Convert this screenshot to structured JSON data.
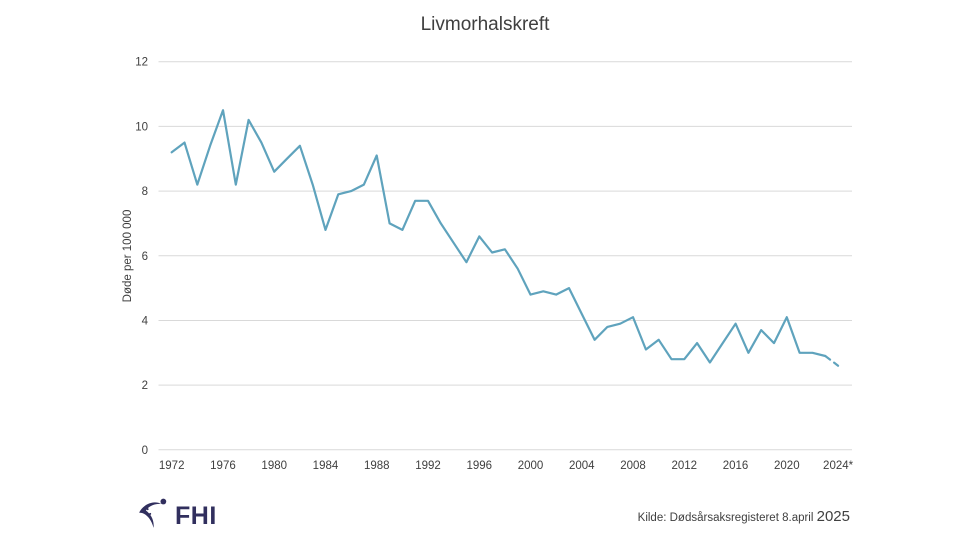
{
  "title": "Livmorhalskreft",
  "y_axis_title": "Døde per 100 000",
  "footer": {
    "logo_text": "FHI",
    "source_prefix": "Kilde: Dødsårsaksregisteret 8.april ",
    "source_year": "2025"
  },
  "colors": {
    "line": "#5fa3bd",
    "gridline": "#d9d9d9",
    "text": "#404040",
    "logo_navy": "#312f5e"
  },
  "chart_data": {
    "type": "line",
    "title": "Livmorhalskreft",
    "xlabel": "",
    "ylabel": "Døde per 100 000",
    "ylim": [
      0,
      12
    ],
    "yticks": [
      0,
      2,
      4,
      6,
      8,
      10,
      12
    ],
    "xtick_labels": [
      "1972",
      "1976",
      "1980",
      "1984",
      "1988",
      "1992",
      "1996",
      "2000",
      "2004",
      "2008",
      "2012",
      "2016",
      "2020",
      "2024*"
    ],
    "grid": "horizontal-only",
    "legend": "none",
    "line_color": "#5fa3bd",
    "dashed_from_x": 2023,
    "x": [
      1972,
      1973,
      1974,
      1975,
      1976,
      1977,
      1978,
      1979,
      1980,
      1981,
      1982,
      1983,
      1984,
      1985,
      1986,
      1987,
      1988,
      1989,
      1990,
      1991,
      1992,
      1993,
      1994,
      1995,
      1996,
      1997,
      1998,
      1999,
      2000,
      2001,
      2002,
      2003,
      2004,
      2005,
      2006,
      2007,
      2008,
      2009,
      2010,
      2011,
      2012,
      2013,
      2014,
      2015,
      2016,
      2017,
      2018,
      2019,
      2020,
      2021,
      2022,
      2023,
      2024
    ],
    "y": [
      9.2,
      9.5,
      8.2,
      9.4,
      10.5,
      8.2,
      10.2,
      9.5,
      8.6,
      9.0,
      9.4,
      8.2,
      6.8,
      7.9,
      8.0,
      8.2,
      9.1,
      7.0,
      6.8,
      7.7,
      7.7,
      7.0,
      6.4,
      5.8,
      6.6,
      6.1,
      6.2,
      5.6,
      4.8,
      4.9,
      4.8,
      5.0,
      4.2,
      3.4,
      3.8,
      3.9,
      4.1,
      3.1,
      3.4,
      2.8,
      2.8,
      3.3,
      2.7,
      3.3,
      3.9,
      3.0,
      3.7,
      3.3,
      4.1,
      3.0,
      3.0,
      2.9,
      2.6
    ]
  }
}
